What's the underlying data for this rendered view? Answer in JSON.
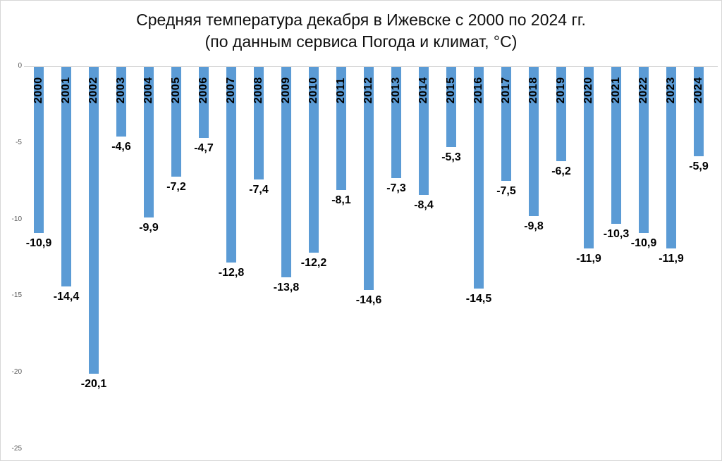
{
  "chart_data": {
    "type": "bar",
    "title": "Средняя температура декабря в Ижевске с 2000 по 2024 гг.",
    "subtitle": "(по данным сервиса Погода и климат, °C)",
    "categories": [
      "2000",
      "2001",
      "2002",
      "2003",
      "2004",
      "2005",
      "2006",
      "2007",
      "2008",
      "2009",
      "2010",
      "2011",
      "2012",
      "2013",
      "2014",
      "2015",
      "2016",
      "2017",
      "2018",
      "2019",
      "2020",
      "2021",
      "2022",
      "2023",
      "2024"
    ],
    "values": [
      -10.9,
      -14.4,
      -20.1,
      -4.6,
      -9.9,
      -7.2,
      -4.7,
      -12.8,
      -7.4,
      -13.8,
      -12.2,
      -8.1,
      -14.6,
      -7.3,
      -8.4,
      -5.3,
      -14.5,
      -7.5,
      -9.8,
      -6.2,
      -11.9,
      -10.3,
      -10.9,
      -11.9,
      -5.9
    ],
    "value_labels": [
      "-10,9",
      "-14,4",
      "-20,1",
      "-4,6",
      "-9,9",
      "-7,2",
      "-4,7",
      "-12,8",
      "-7,4",
      "-13,8",
      "-12,2",
      "-8,1",
      "-14,6",
      "-7,3",
      "-8,4",
      "-5,3",
      "-14,5",
      "-7,5",
      "-9,8",
      "-6,2",
      "-11,9",
      "-10,3",
      "-10,9",
      "-11,9",
      "-5,9"
    ],
    "xlabel": "",
    "ylabel": "",
    "ylim": [
      -25,
      0
    ],
    "y_ticks": [
      0,
      -5,
      -10,
      -15,
      -20,
      -25
    ],
    "y_tick_labels": [
      "0",
      "-5",
      "-10",
      "-15",
      "-20",
      "-25"
    ],
    "grid": "off",
    "legend": "none",
    "bar_color": "#5B9BD5",
    "axis_line_color": "#d9d9d9",
    "tick_label_color": "#595959"
  }
}
